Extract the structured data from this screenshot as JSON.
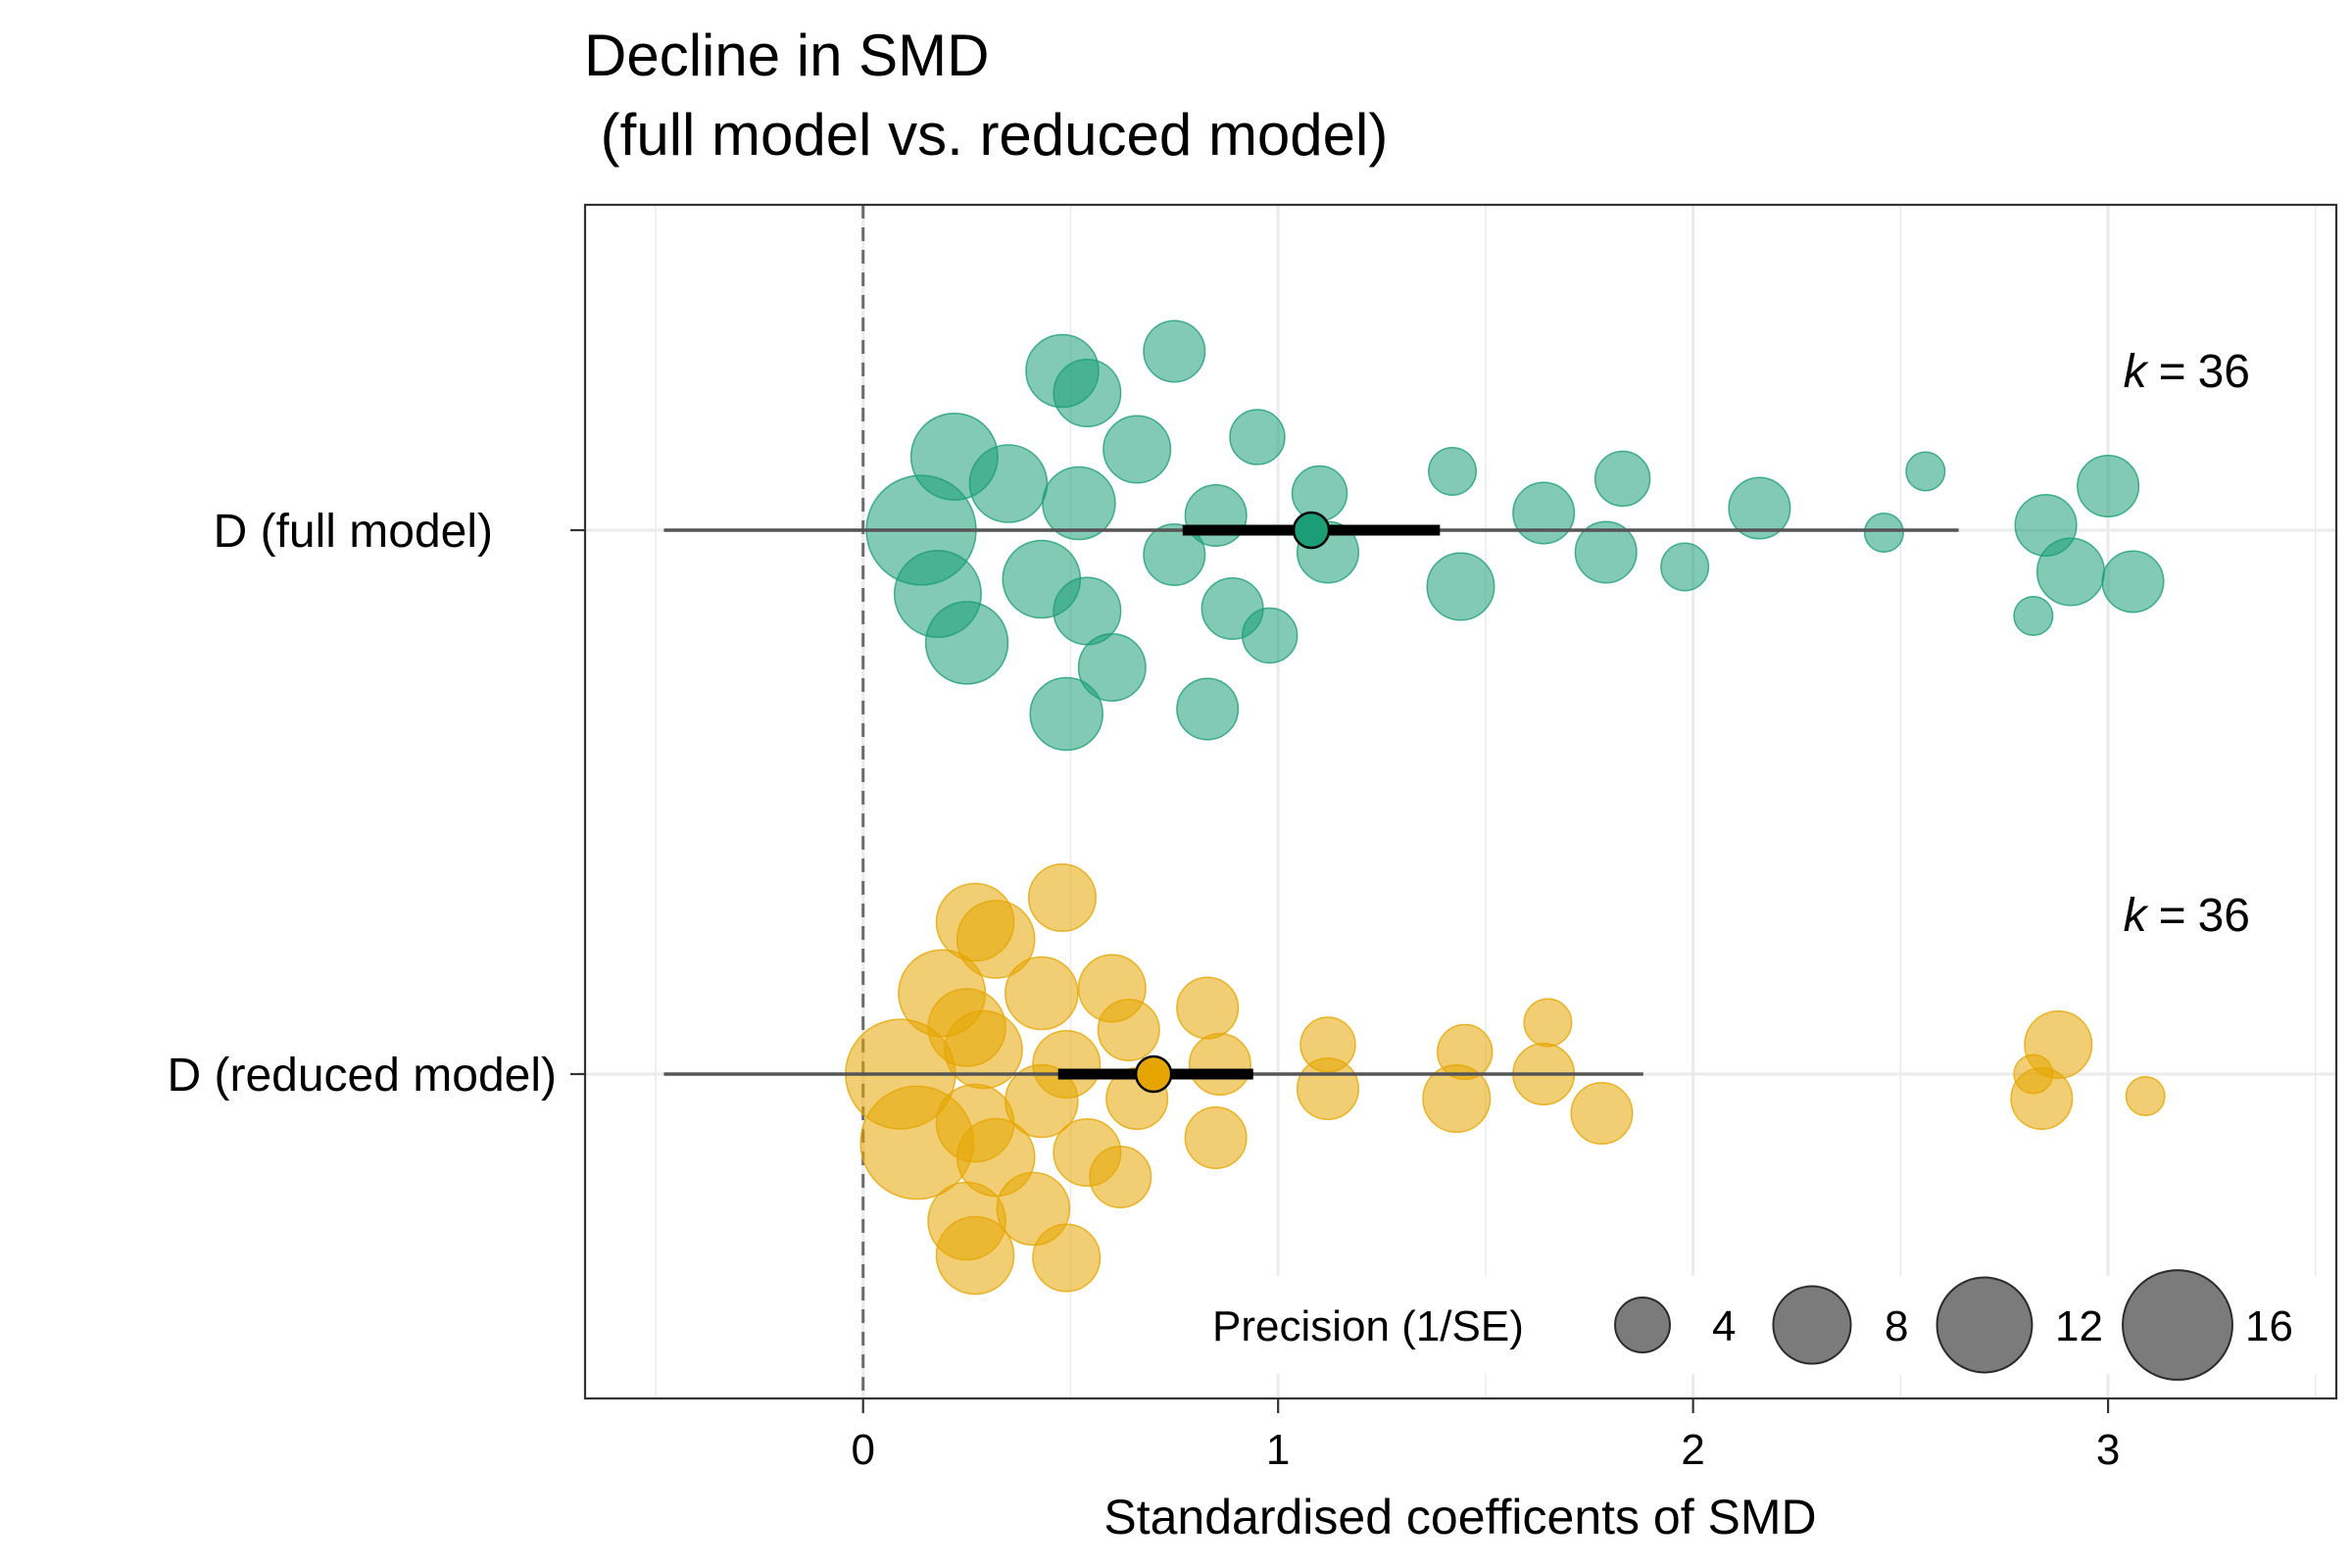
{
  "chart_data": {
    "type": "scatter",
    "title": "Decline in SMD",
    "subtitle": " (full model vs. reduced model)",
    "xlabel": "Standardised coefficents of SMD",
    "xlim": [
      -0.67,
      3.55
    ],
    "xticks": [
      0,
      1,
      2,
      3
    ],
    "xtick_labels": [
      "0",
      "1",
      "2",
      "3"
    ],
    "grid": true,
    "reference_line_x": 0,
    "rows": [
      {
        "label": "D (full model)",
        "color": "#1b9e77",
        "k_label": "36",
        "estimate": 1.08,
        "ci": [
          0.77,
          1.39
        ],
        "pi": [
          -0.48,
          2.64
        ],
        "points": [
          {
            "x": 0.14,
            "y": 0.0,
            "p": 16
          },
          {
            "x": 0.22,
            "y": 0.3,
            "p": 10
          },
          {
            "x": 0.18,
            "y": -0.26,
            "p": 10
          },
          {
            "x": 0.25,
            "y": -0.46,
            "p": 9
          },
          {
            "x": 0.35,
            "y": 0.19,
            "p": 8
          },
          {
            "x": 0.43,
            "y": -0.2,
            "p": 8
          },
          {
            "x": 0.48,
            "y": 0.65,
            "p": 7
          },
          {
            "x": 0.54,
            "y": 0.56,
            "p": 6
          },
          {
            "x": 0.52,
            "y": 0.11,
            "p": 7
          },
          {
            "x": 0.54,
            "y": -0.33,
            "p": 6
          },
          {
            "x": 0.6,
            "y": -0.56,
            "p": 6
          },
          {
            "x": 0.49,
            "y": -0.75,
            "p": 7
          },
          {
            "x": 0.66,
            "y": 0.33,
            "p": 6
          },
          {
            "x": 0.75,
            "y": 0.73,
            "p": 5
          },
          {
            "x": 0.75,
            "y": -0.1,
            "p": 5
          },
          {
            "x": 0.85,
            "y": 0.06,
            "p": 5
          },
          {
            "x": 0.89,
            "y": -0.32,
            "p": 5
          },
          {
            "x": 0.83,
            "y": -0.73,
            "p": 5
          },
          {
            "x": 0.95,
            "y": 0.38,
            "p": 4
          },
          {
            "x": 0.98,
            "y": -0.43,
            "p": 4
          },
          {
            "x": 1.1,
            "y": 0.15,
            "p": 4
          },
          {
            "x": 1.12,
            "y": -0.09,
            "p": 5
          },
          {
            "x": 1.42,
            "y": 0.24,
            "p": 3
          },
          {
            "x": 1.44,
            "y": -0.23,
            "p": 6
          },
          {
            "x": 1.64,
            "y": 0.07,
            "p": 5
          },
          {
            "x": 1.79,
            "y": -0.09,
            "p": 5
          },
          {
            "x": 1.83,
            "y": 0.21,
            "p": 4
          },
          {
            "x": 1.98,
            "y": -0.15,
            "p": 3
          },
          {
            "x": 2.16,
            "y": 0.09,
            "p": 5
          },
          {
            "x": 2.46,
            "y": -0.01,
            "p": 2
          },
          {
            "x": 2.56,
            "y": 0.24,
            "p": 2
          },
          {
            "x": 2.82,
            "y": -0.35,
            "p": 2
          },
          {
            "x": 2.85,
            "y": 0.02,
            "p": 5
          },
          {
            "x": 2.91,
            "y": -0.17,
            "p": 6
          },
          {
            "x": 3.0,
            "y": 0.18,
            "p": 5
          },
          {
            "x": 3.06,
            "y": -0.21,
            "p": 5
          }
        ]
      },
      {
        "label": "D (reduced model)",
        "color": "#e6a500",
        "k_label": "36",
        "estimate": 0.7,
        "ci": [
          0.47,
          0.94
        ],
        "pi": [
          -0.48,
          1.88
        ],
        "points": [
          {
            "x": 0.09,
            "y": 0.0,
            "p": 16
          },
          {
            "x": 0.13,
            "y": -0.28,
            "p": 17
          },
          {
            "x": 0.19,
            "y": 0.33,
            "p": 10
          },
          {
            "x": 0.25,
            "y": 0.19,
            "p": 8
          },
          {
            "x": 0.27,
            "y": 0.62,
            "p": 8
          },
          {
            "x": 0.27,
            "y": -0.2,
            "p": 8
          },
          {
            "x": 0.29,
            "y": 0.1,
            "p": 8
          },
          {
            "x": 0.32,
            "y": 0.55,
            "p": 8
          },
          {
            "x": 0.32,
            "y": -0.34,
            "p": 8
          },
          {
            "x": 0.25,
            "y": -0.6,
            "p": 8
          },
          {
            "x": 0.27,
            "y": -0.74,
            "p": 8
          },
          {
            "x": 0.43,
            "y": 0.33,
            "p": 7
          },
          {
            "x": 0.43,
            "y": -0.11,
            "p": 7
          },
          {
            "x": 0.41,
            "y": -0.55,
            "p": 7
          },
          {
            "x": 0.48,
            "y": 0.72,
            "p": 6
          },
          {
            "x": 0.49,
            "y": 0.04,
            "p": 6
          },
          {
            "x": 0.54,
            "y": -0.32,
            "p": 6
          },
          {
            "x": 0.49,
            "y": -0.75,
            "p": 6
          },
          {
            "x": 0.6,
            "y": 0.35,
            "p": 6
          },
          {
            "x": 0.64,
            "y": 0.18,
            "p": 5
          },
          {
            "x": 0.66,
            "y": -0.1,
            "p": 5
          },
          {
            "x": 0.62,
            "y": -0.42,
            "p": 5
          },
          {
            "x": 0.83,
            "y": 0.27,
            "p": 5
          },
          {
            "x": 0.86,
            "y": 0.04,
            "p": 5
          },
          {
            "x": 0.85,
            "y": -0.26,
            "p": 5
          },
          {
            "x": 1.12,
            "y": 0.12,
            "p": 4
          },
          {
            "x": 1.12,
            "y": -0.06,
            "p": 5
          },
          {
            "x": 1.45,
            "y": 0.09,
            "p": 4
          },
          {
            "x": 1.43,
            "y": -0.1,
            "p": 6
          },
          {
            "x": 1.65,
            "y": 0.21,
            "p": 3
          },
          {
            "x": 1.64,
            "y": 0.0,
            "p": 5
          },
          {
            "x": 1.78,
            "y": -0.16,
            "p": 5
          },
          {
            "x": 2.88,
            "y": 0.12,
            "p": 6
          },
          {
            "x": 2.82,
            "y": 0.0,
            "p": 2
          },
          {
            "x": 2.84,
            "y": -0.1,
            "p": 5
          },
          {
            "x": 3.09,
            "y": -0.09,
            "p": 2
          }
        ]
      }
    ],
    "legend": {
      "title": "Precision (1/SE)",
      "placement": "bottom-right",
      "color": "#5a5a5a",
      "breaks": [
        4,
        8,
        12,
        16
      ],
      "labels": [
        "4",
        "8",
        "12",
        "16"
      ]
    }
  }
}
